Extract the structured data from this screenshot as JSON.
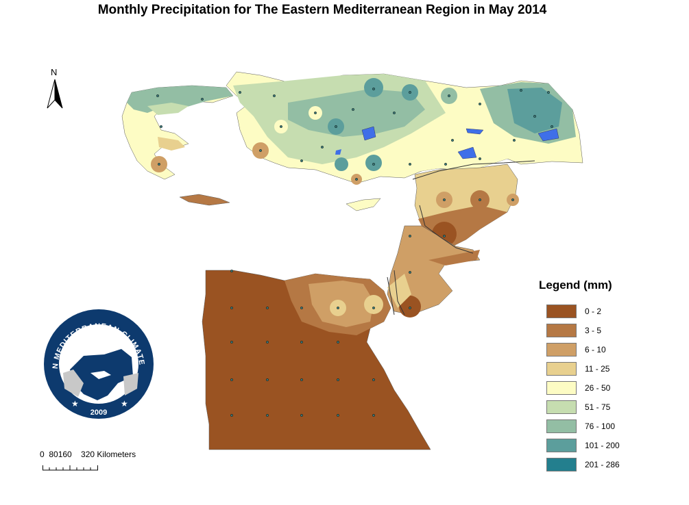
{
  "title": "Monthly Precipitation  for The Eastern Mediterranean Region in May 2014",
  "north_arrow": {
    "label": "N",
    "icon": "north-arrow-icon"
  },
  "scale_bar": {
    "labels": "0  80160    320 Kilometers"
  },
  "logo": {
    "text": "EASTERN MEDITERRANEAN CLIMATE CENTRE",
    "year": "2009",
    "colors": {
      "ring": "#0d3a6e",
      "land": "#0d3a6e",
      "sea": "#ffffff",
      "grey": "#c8c8c8"
    }
  },
  "legend": {
    "title": "Legend (mm)",
    "items": [
      {
        "label": "0 - 2",
        "color": "#9a5322"
      },
      {
        "label": "3 - 5",
        "color": "#b57844"
      },
      {
        "label": "6 - 10",
        "color": "#cf9f66"
      },
      {
        "label": "11 - 25",
        "color": "#e8d08f"
      },
      {
        "label": "26 - 50",
        "color": "#fdfcc4"
      },
      {
        "label": "51 - 75",
        "color": "#c6ddb0"
      },
      {
        "label": "76 - 100",
        "color": "#93bea4"
      },
      {
        "label": "101 - 200",
        "color": "#5c9e9c"
      },
      {
        "label": "201 - 286",
        "color": "#237f8e"
      }
    ]
  }
}
